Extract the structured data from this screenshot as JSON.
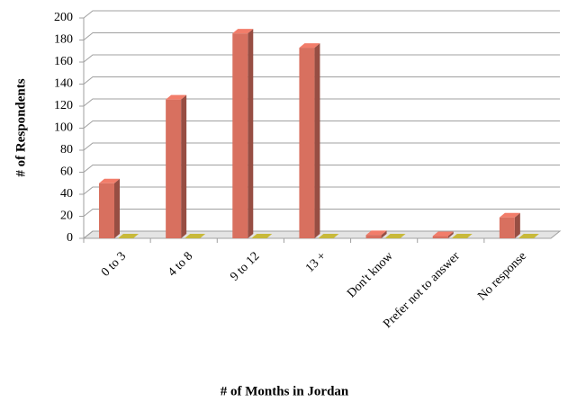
{
  "chart_data": {
    "type": "bar3d",
    "x_label": "# of Months in Jordan",
    "y_label": "# of Respondents",
    "categories": [
      "0 to 3",
      "4 to 8",
      "9 to 12",
      "13 +",
      "Don't know",
      "Prefer not to answer",
      "No response"
    ],
    "series": [
      {
        "color": "#d8705f",
        "values": [
          50,
          126,
          186,
          173,
          3,
          2,
          19
        ]
      },
      {
        "color": "#b3a534",
        "values": [
          0,
          0,
          0,
          0,
          0,
          0,
          0
        ]
      }
    ],
    "ylim": [
      0,
      200
    ],
    "yticks": [
      0,
      20,
      40,
      60,
      80,
      100,
      120,
      140,
      160,
      180,
      200
    ],
    "grid": true
  }
}
